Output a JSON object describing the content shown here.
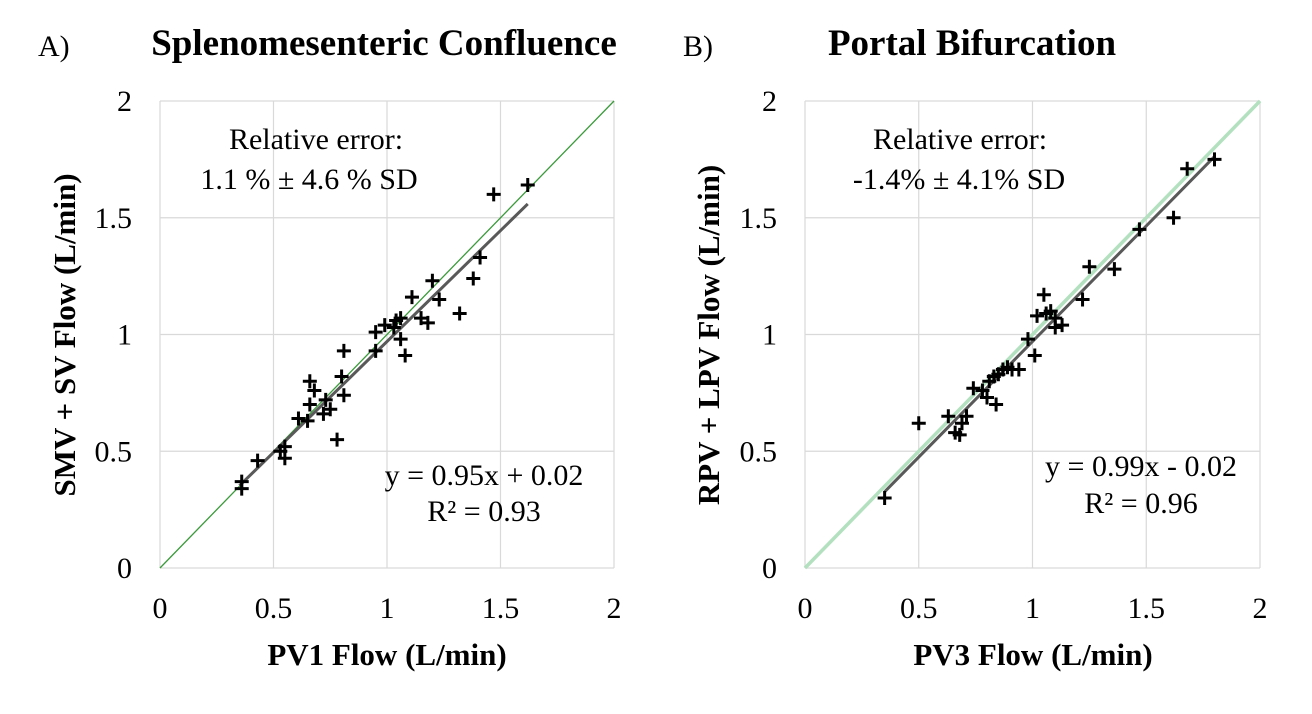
{
  "chart_data": [
    {
      "type": "scatter",
      "panel_label": "A)",
      "title": "Splenomesenteric Confluence",
      "xlabel": "PV1 Flow (L/min)",
      "ylabel": "SMV + SV Flow (L/min)",
      "xlim": [
        0,
        2
      ],
      "ylim": [
        0,
        2
      ],
      "xticks": [
        "0",
        "0.5",
        "1",
        "1.5",
        "2"
      ],
      "yticks": [
        "0",
        "0.5",
        "1",
        "1.5",
        "2"
      ],
      "grid": true,
      "marker": "plus",
      "identity_line_color": "#3a9a3a",
      "trendline_color": "#595959",
      "relative_error_label": "Relative error:",
      "relative_error_value": "1.1 % ± 4.6 % SD",
      "fit_equation": "y = 0.95x + 0.02",
      "r_squared": "R² = 0.93",
      "fit": {
        "slope": 0.95,
        "intercept": 0.02,
        "x_range": [
          0.35,
          1.62
        ]
      },
      "points": [
        [
          0.36,
          0.37
        ],
        [
          0.36,
          0.34
        ],
        [
          0.43,
          0.46
        ],
        [
          0.53,
          0.5
        ],
        [
          0.55,
          0.52
        ],
        [
          0.55,
          0.47
        ],
        [
          0.61,
          0.64
        ],
        [
          0.65,
          0.63
        ],
        [
          0.66,
          0.7
        ],
        [
          0.66,
          0.8
        ],
        [
          0.68,
          0.76
        ],
        [
          0.72,
          0.66
        ],
        [
          0.73,
          0.72
        ],
        [
          0.75,
          0.68
        ],
        [
          0.78,
          0.55
        ],
        [
          0.8,
          0.82
        ],
        [
          0.81,
          0.93
        ],
        [
          0.81,
          0.74
        ],
        [
          0.95,
          0.93
        ],
        [
          0.95,
          1.01
        ],
        [
          0.99,
          1.04
        ],
        [
          1.03,
          1.03
        ],
        [
          1.04,
          1.06
        ],
        [
          1.06,
          1.07
        ],
        [
          1.06,
          0.98
        ],
        [
          1.08,
          0.91
        ],
        [
          1.11,
          1.16
        ],
        [
          1.15,
          1.07
        ],
        [
          1.18,
          1.05
        ],
        [
          1.2,
          1.23
        ],
        [
          1.23,
          1.15
        ],
        [
          1.32,
          1.09
        ],
        [
          1.38,
          1.24
        ],
        [
          1.41,
          1.33
        ],
        [
          1.47,
          1.6
        ],
        [
          1.62,
          1.64
        ]
      ]
    },
    {
      "type": "scatter",
      "panel_label": "B)",
      "title": "Portal Bifurcation",
      "xlabel": "PV3 Flow (L/min)",
      "ylabel": "RPV + LPV Flow (L/min)",
      "xlim": [
        0,
        2
      ],
      "ylim": [
        0,
        2
      ],
      "xticks": [
        "0",
        "0.5",
        "1",
        "1.5",
        "2"
      ],
      "yticks": [
        "0",
        "0.5",
        "1",
        "1.5",
        "2"
      ],
      "grid": true,
      "marker": "plus",
      "identity_line_color": "#b3e0bf",
      "trendline_color": "#595959",
      "relative_error_label": "Relative error:",
      "relative_error_value": "-1.4% ± 4.1% SD",
      "fit_equation": "y = 0.99x - 0.02",
      "r_squared": "R² = 0.96",
      "fit": {
        "slope": 0.99,
        "intercept": -0.02,
        "x_range": [
          0.35,
          1.8
        ]
      },
      "points": [
        [
          0.35,
          0.3
        ],
        [
          0.5,
          0.62
        ],
        [
          0.63,
          0.65
        ],
        [
          0.66,
          0.58
        ],
        [
          0.68,
          0.57
        ],
        [
          0.69,
          0.62
        ],
        [
          0.71,
          0.65
        ],
        [
          0.74,
          0.77
        ],
        [
          0.78,
          0.76
        ],
        [
          0.8,
          0.73
        ],
        [
          0.81,
          0.8
        ],
        [
          0.83,
          0.82
        ],
        [
          0.84,
          0.7
        ],
        [
          0.85,
          0.83
        ],
        [
          0.87,
          0.85
        ],
        [
          0.89,
          0.86
        ],
        [
          0.91,
          0.85
        ],
        [
          0.94,
          0.85
        ],
        [
          0.98,
          0.98
        ],
        [
          1.01,
          0.91
        ],
        [
          1.02,
          1.08
        ],
        [
          1.05,
          1.17
        ],
        [
          1.06,
          1.09
        ],
        [
          1.08,
          1.1
        ],
        [
          1.1,
          1.07
        ],
        [
          1.1,
          1.03
        ],
        [
          1.13,
          1.04
        ],
        [
          1.22,
          1.15
        ],
        [
          1.25,
          1.29
        ],
        [
          1.36,
          1.28
        ],
        [
          1.47,
          1.45
        ],
        [
          1.62,
          1.5
        ],
        [
          1.68,
          1.71
        ],
        [
          1.8,
          1.75
        ]
      ]
    }
  ]
}
